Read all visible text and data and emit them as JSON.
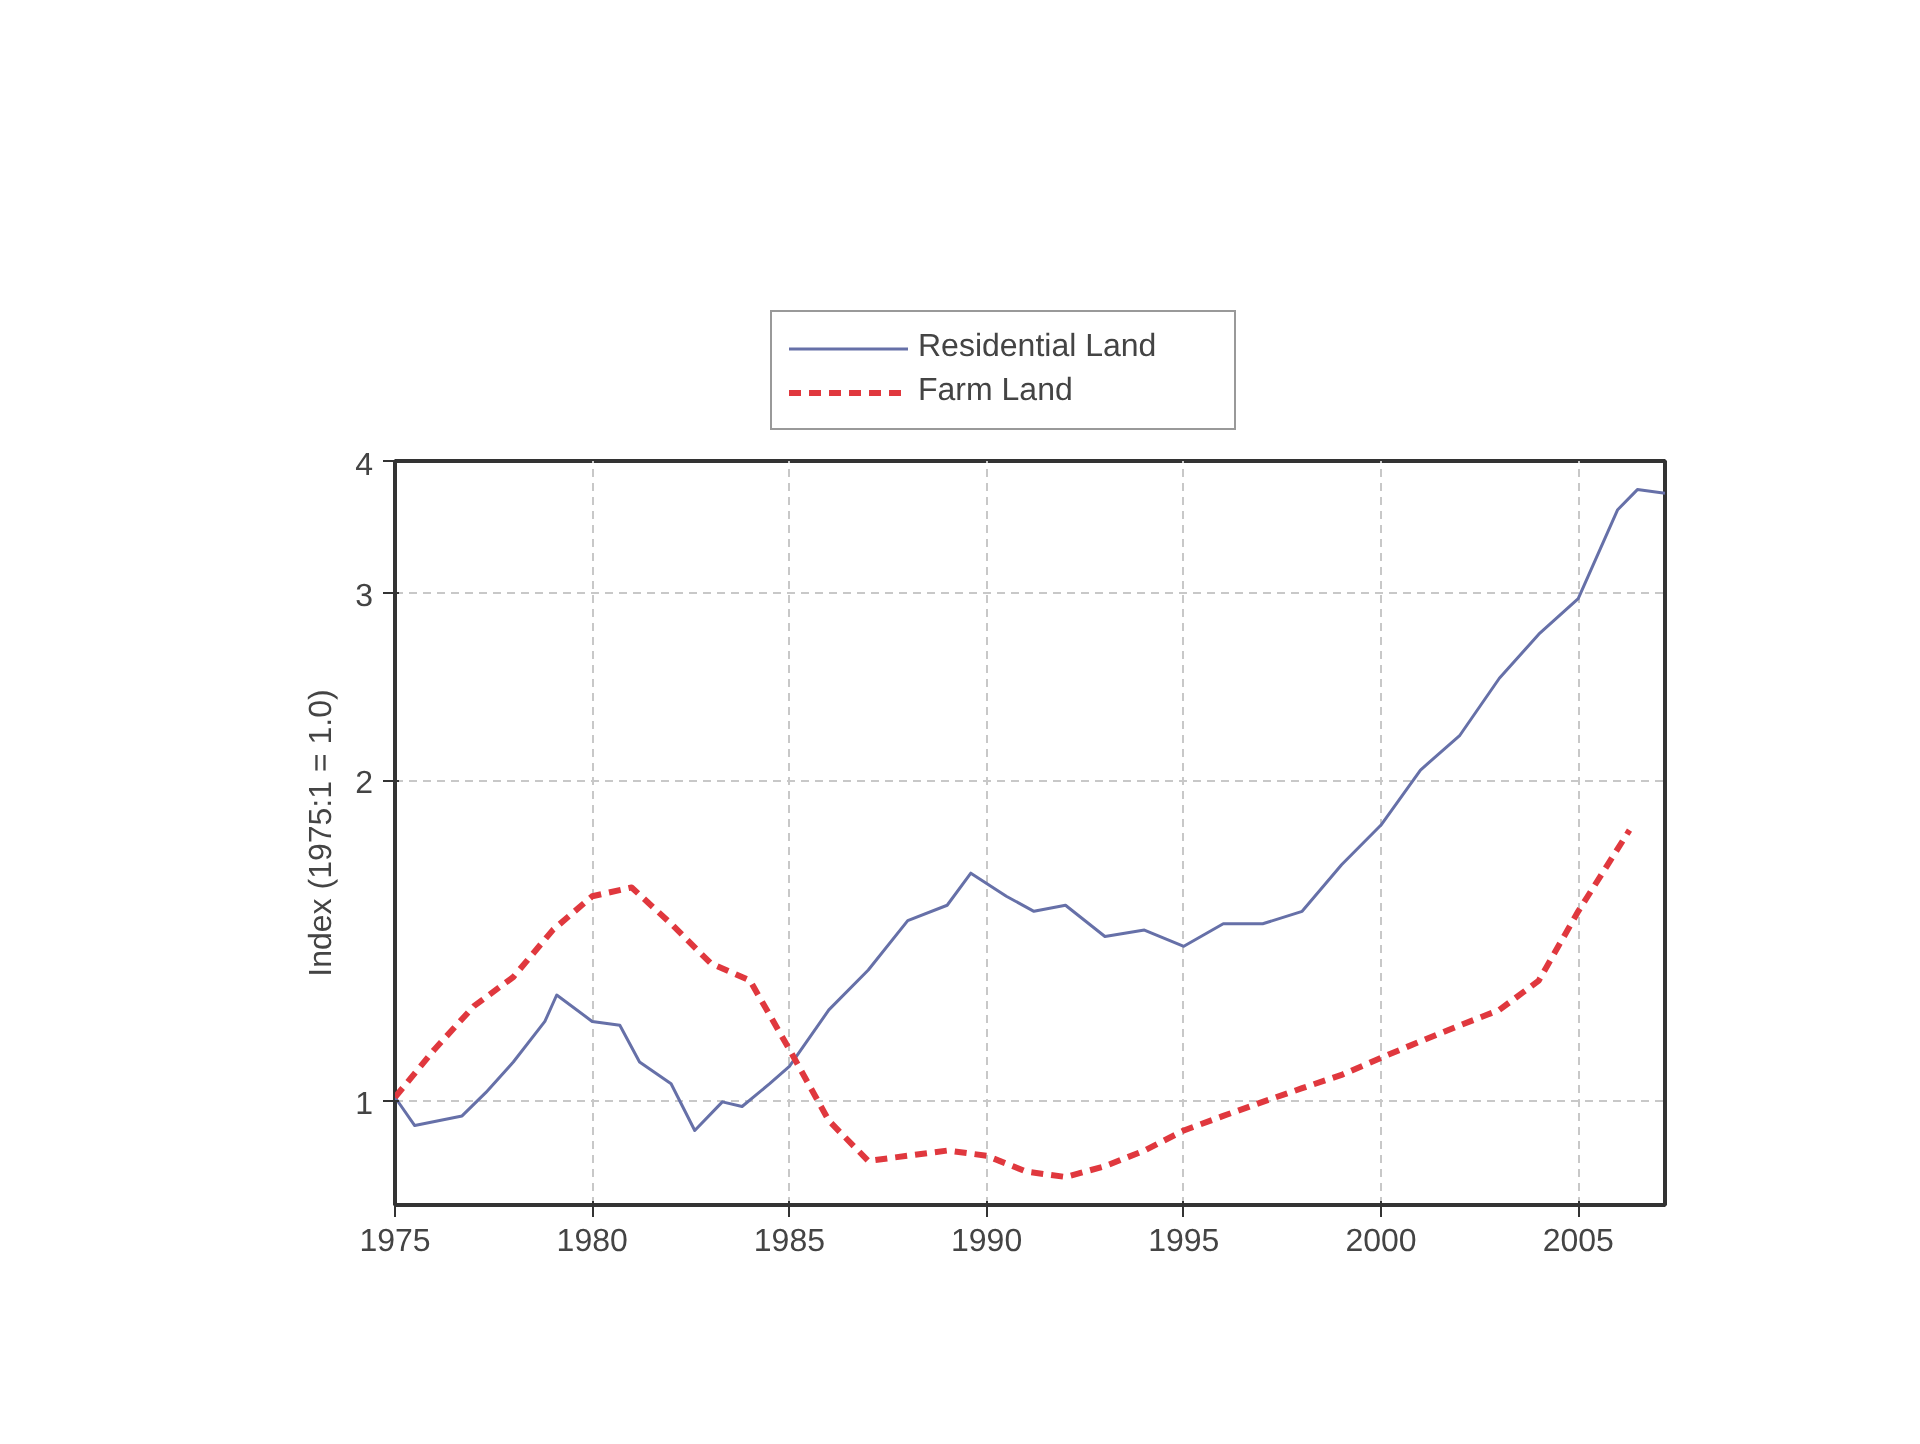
{
  "chart_data": {
    "type": "line",
    "ylabel": "Index (1975:1 = 1.0)",
    "log": true,
    "grid": true,
    "legend": "top",
    "xlim": [
      1975,
      2007.2
    ],
    "xticks": [
      1975,
      1980,
      1985,
      1990,
      1995,
      2000,
      2005
    ],
    "ylim": [
      0.8,
      4
    ],
    "yticks": [
      1,
      2,
      3,
      4
    ],
    "series": [
      {
        "name": "Residential Land",
        "color": "#6670a8",
        "line_style": "solid",
        "x": [
          1975,
          1975.5,
          1976.1,
          1976.7,
          1977.3,
          1978,
          1978.8,
          1979.1,
          1980,
          1980.7,
          1981.2,
          1982,
          1982.6,
          1983.3,
          1983.8,
          1984.5,
          1985,
          1986,
          1987,
          1988,
          1989,
          1989.6,
          1990.5,
          1991.2,
          1992,
          1993,
          1994,
          1995,
          1996,
          1997,
          1998,
          1999,
          2000,
          2001,
          2002,
          2003,
          2004,
          2005,
          2006,
          2006.5,
          2007.2
        ],
        "values": [
          1.01,
          0.95,
          0.96,
          0.97,
          1.02,
          1.09,
          1.19,
          1.26,
          1.19,
          1.18,
          1.09,
          1.04,
          0.94,
          1.0,
          0.99,
          1.04,
          1.08,
          1.22,
          1.33,
          1.48,
          1.53,
          1.64,
          1.56,
          1.51,
          1.53,
          1.43,
          1.45,
          1.4,
          1.47,
          1.47,
          1.51,
          1.67,
          1.82,
          2.05,
          2.21,
          2.5,
          2.75,
          2.97,
          3.6,
          3.76,
          3.73
        ]
      },
      {
        "name": "Farm Land",
        "color": "#e0383e",
        "line_style": "dashed",
        "x": [
          1975,
          1976,
          1977,
          1978,
          1979,
          1980,
          1981,
          1982,
          1983,
          1984,
          1985,
          1986,
          1987,
          1988,
          1989,
          1990,
          1991,
          1992,
          1993,
          1994,
          1995,
          1996,
          1997,
          1998,
          1999,
          2000,
          2001,
          2002,
          2003,
          2004,
          2005,
          2006.3
        ],
        "values": [
          1.01,
          1.12,
          1.23,
          1.31,
          1.45,
          1.56,
          1.59,
          1.47,
          1.35,
          1.3,
          1.12,
          0.96,
          0.88,
          0.89,
          0.9,
          0.89,
          0.86,
          0.85,
          0.87,
          0.9,
          0.94,
          0.97,
          1.0,
          1.03,
          1.06,
          1.1,
          1.14,
          1.18,
          1.22,
          1.3,
          1.51,
          1.8
        ]
      }
    ]
  }
}
